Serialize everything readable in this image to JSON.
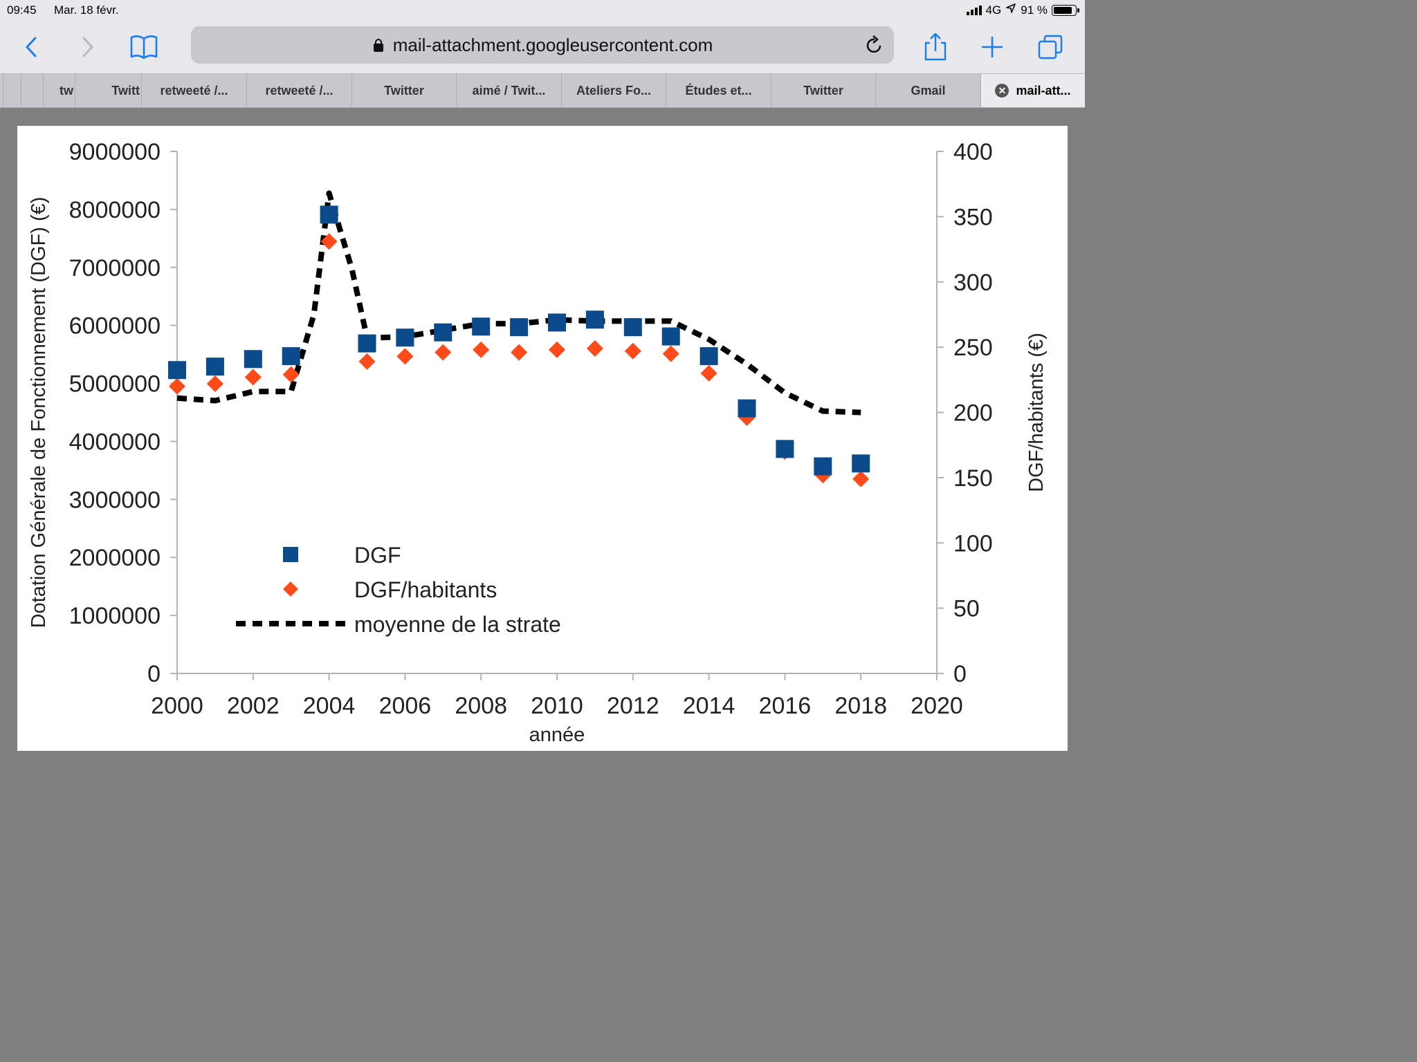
{
  "status": {
    "time": "09:45",
    "date": "Mar. 18 févr.",
    "network": "4G",
    "battery": "91 %",
    "battery_level": 0.91
  },
  "toolbar": {
    "back_icon": "chevron-left-icon",
    "forward_icon": "chevron-right-icon",
    "bookmarks_icon": "book-icon",
    "url": "mail-attachment.googleusercontent.com",
    "reload_icon": "reload-icon",
    "share_icon": "share-icon",
    "new_tab_icon": "plus-icon",
    "tabs_icon": "tabs-icon"
  },
  "tabs": [
    {
      "label": ""
    },
    {
      "label": ""
    },
    {
      "label": "tw"
    },
    {
      "label": "Twitt"
    },
    {
      "label": "retweeté /..."
    },
    {
      "label": "retweeté /..."
    },
    {
      "label": "Twitter"
    },
    {
      "label": "aimé / Twit..."
    },
    {
      "label": "Ateliers Fo..."
    },
    {
      "label": "Études et..."
    },
    {
      "label": "Twitter"
    },
    {
      "label": "Gmail"
    },
    {
      "label": "mail-att..."
    }
  ],
  "chart_data": {
    "type": "scatter",
    "title": "",
    "xlabel": "année",
    "ylabel": "Dotation Générale de Fonctionnement (DGF) (€)",
    "y2label": "DGF/habitants (€)",
    "xlim": [
      2000,
      2020
    ],
    "ylim": [
      0,
      9000000
    ],
    "y2lim": [
      0,
      400
    ],
    "x_ticks": [
      "2000",
      "2002",
      "2004",
      "2006",
      "2008",
      "2010",
      "2012",
      "2014",
      "2016",
      "2018",
      "2020"
    ],
    "y_ticks": [
      "0",
      "1000000",
      "2000000",
      "3000000",
      "4000000",
      "5000000",
      "6000000",
      "7000000",
      "8000000",
      "9000000"
    ],
    "y2_ticks": [
      "0",
      "50",
      "100",
      "150",
      "200",
      "250",
      "300",
      "350",
      "400"
    ],
    "legend_position": "bottom-left",
    "series": [
      {
        "name": "DGF",
        "axis": "left",
        "marker": "square",
        "color": "#0b4a8b",
        "x": [
          2000,
          2001,
          2002,
          2003,
          2004,
          2005,
          2006,
          2007,
          2008,
          2009,
          2010,
          2011,
          2012,
          2013,
          2014,
          2015,
          2016,
          2017,
          2018
        ],
        "y": [
          5230000,
          5290000,
          5420000,
          5470000,
          7910000,
          5690000,
          5790000,
          5880000,
          5980000,
          5970000,
          6050000,
          6100000,
          5970000,
          5810000,
          5470000,
          4570000,
          3870000,
          3570000,
          3620000
        ]
      },
      {
        "name": "DGF/habitants",
        "axis": "right",
        "marker": "diamond",
        "color": "#ff4a1a",
        "x": [
          2000,
          2001,
          2002,
          2003,
          2004,
          2005,
          2006,
          2007,
          2008,
          2009,
          2010,
          2011,
          2012,
          2013,
          2014,
          2015,
          2016,
          2017,
          2018
        ],
        "y": [
          220,
          222,
          227,
          229,
          331,
          239,
          243,
          246,
          248,
          246,
          248,
          249,
          247,
          245,
          230,
          196,
          170,
          152,
          149
        ]
      },
      {
        "name": "moyenne de la strate",
        "axis": "right",
        "marker": "dashed-line",
        "color": "#000000",
        "x": [
          2000,
          2001,
          2002,
          2003,
          2003.6,
          2004,
          2004.6,
          2005,
          2006,
          2007,
          2008,
          2009,
          2010,
          2011,
          2012,
          2013,
          2014,
          2015,
          2016,
          2017,
          2018
        ],
        "y": [
          211,
          209,
          216,
          216,
          275,
          368,
          310,
          257,
          258,
          263,
          268,
          268,
          271,
          270,
          270,
          270,
          256,
          237,
          215,
          201,
          200
        ]
      }
    ]
  }
}
